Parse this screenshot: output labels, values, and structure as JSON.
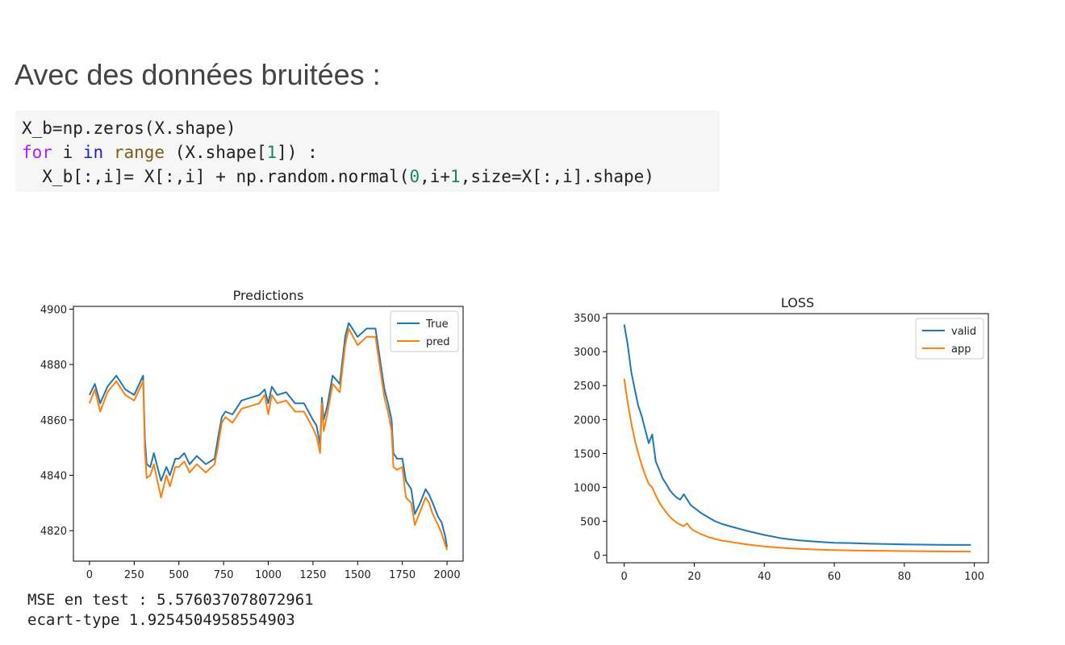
{
  "heading": "Avec des données bruitées :",
  "code": {
    "line1": "X_b=np.zeros(X.shape)",
    "line2": {
      "kw_for": "for",
      "var_i": " i ",
      "kw_in": "in",
      "sp": " ",
      "fn_range": "range",
      "rest": " (X.shape[",
      "num_1": "1",
      "end": "]) :"
    },
    "line3": {
      "a": "  X_b[:,i]= X[:,i] + np.random.normal(",
      "num_0": "0",
      "b": ",i+",
      "num_1": "1",
      "c": ",size=X[:,i].shape)"
    }
  },
  "outputs": {
    "mse": "MSE en test : 5.576037078072961",
    "ecart": "ecart-type 1.9254504958554903"
  },
  "colors": {
    "blue": "#1f77b4",
    "orange": "#ff7f0e"
  },
  "chart_data": [
    {
      "type": "line",
      "title": "Predictions",
      "xlabel": "",
      "ylabel": "",
      "xlim": [
        -90,
        2090
      ],
      "ylim": [
        4809,
        4901
      ],
      "xticks": [
        0,
        250,
        500,
        750,
        1000,
        1250,
        1500,
        1750,
        2000
      ],
      "yticks": [
        4820,
        4840,
        4860,
        4880,
        4900
      ],
      "legend": "upper right",
      "series": [
        {
          "name": "True",
          "x": [
            0,
            30,
            60,
            100,
            150,
            200,
            250,
            300,
            310,
            320,
            340,
            360,
            380,
            400,
            430,
            450,
            480,
            500,
            530,
            560,
            600,
            650,
            700,
            720,
            740,
            760,
            800,
            850,
            900,
            950,
            980,
            1000,
            1020,
            1050,
            1100,
            1150,
            1200,
            1250,
            1270,
            1290,
            1300,
            1310,
            1330,
            1360,
            1400,
            1430,
            1450,
            1500,
            1550,
            1600,
            1650,
            1670,
            1690,
            1700,
            1720,
            1750,
            1770,
            1800,
            1820,
            1850,
            1880,
            1900,
            1920,
            1950,
            1970,
            1990,
            2000
          ],
          "y": [
            4869,
            4873,
            4866,
            4872,
            4876,
            4871,
            4869,
            4876,
            4853,
            4844,
            4843,
            4848,
            4843,
            4838,
            4843,
            4840,
            4846,
            4846,
            4848,
            4844,
            4847,
            4844,
            4846,
            4854,
            4861,
            4863,
            4862,
            4867,
            4868,
            4869,
            4871,
            4866,
            4872,
            4869,
            4870,
            4866,
            4866,
            4860,
            4858,
            4851,
            4868,
            4860,
            4865,
            4876,
            4873,
            4890,
            4895,
            4890,
            4893,
            4893,
            4871,
            4866,
            4860,
            4848,
            4846,
            4846,
            4838,
            4835,
            4826,
            4830,
            4835,
            4833,
            4830,
            4825,
            4823,
            4818,
            4814
          ]
        },
        {
          "name": "pred",
          "x": [
            0,
            30,
            60,
            100,
            150,
            200,
            250,
            300,
            310,
            320,
            340,
            360,
            380,
            400,
            430,
            450,
            480,
            500,
            530,
            560,
            600,
            650,
            700,
            720,
            740,
            760,
            800,
            850,
            900,
            950,
            980,
            1000,
            1020,
            1050,
            1100,
            1150,
            1200,
            1250,
            1270,
            1290,
            1300,
            1310,
            1330,
            1360,
            1400,
            1430,
            1450,
            1500,
            1550,
            1600,
            1650,
            1670,
            1690,
            1700,
            1720,
            1750,
            1770,
            1800,
            1820,
            1850,
            1880,
            1900,
            1920,
            1950,
            1970,
            1990,
            2000
          ],
          "y": [
            4866,
            4871,
            4863,
            4870,
            4874,
            4869,
            4867,
            4874,
            4849,
            4839,
            4840,
            4844,
            4838,
            4832,
            4840,
            4836,
            4843,
            4843,
            4845,
            4841,
            4844,
            4841,
            4844,
            4851,
            4859,
            4861,
            4859,
            4864,
            4865,
            4866,
            4869,
            4862,
            4869,
            4866,
            4867,
            4863,
            4863,
            4857,
            4854,
            4848,
            4866,
            4856,
            4862,
            4873,
            4870,
            4887,
            4893,
            4887,
            4890,
            4890,
            4868,
            4863,
            4856,
            4843,
            4842,
            4843,
            4832,
            4830,
            4822,
            4827,
            4832,
            4830,
            4826,
            4822,
            4819,
            4815,
            4813
          ]
        }
      ]
    },
    {
      "type": "line",
      "title": "LOSS",
      "xlabel": "",
      "ylabel": "",
      "xlim": [
        -5,
        104
      ],
      "ylim": [
        -110,
        3560
      ],
      "xticks": [
        0,
        20,
        40,
        60,
        80,
        100
      ],
      "yticks": [
        0,
        500,
        1000,
        1500,
        2000,
        2500,
        3000,
        3500
      ],
      "legend": "upper right",
      "series": [
        {
          "name": "valid",
          "x": [
            0,
            1,
            2,
            3,
            4,
            5,
            6,
            7,
            8,
            9,
            10,
            11,
            12,
            13,
            14,
            15,
            16,
            17,
            18,
            19,
            20,
            22,
            24,
            26,
            28,
            30,
            35,
            40,
            45,
            50,
            55,
            60,
            65,
            70,
            75,
            80,
            85,
            90,
            95,
            99
          ],
          "y": [
            3400,
            3100,
            2700,
            2450,
            2200,
            2050,
            1850,
            1650,
            1780,
            1380,
            1260,
            1130,
            1050,
            960,
            900,
            850,
            820,
            900,
            820,
            740,
            700,
            620,
            560,
            500,
            460,
            430,
            360,
            300,
            250,
            220,
            200,
            185,
            180,
            170,
            165,
            160,
            157,
            155,
            153,
            152
          ]
        },
        {
          "name": "app",
          "x": [
            0,
            1,
            2,
            3,
            4,
            5,
            6,
            7,
            8,
            9,
            10,
            11,
            12,
            13,
            14,
            15,
            16,
            17,
            18,
            19,
            20,
            22,
            24,
            26,
            28,
            30,
            35,
            40,
            45,
            50,
            55,
            60,
            65,
            70,
            75,
            80,
            85,
            90,
            95,
            99
          ],
          "y": [
            2600,
            2250,
            1950,
            1700,
            1500,
            1330,
            1180,
            1050,
            1000,
            880,
            780,
            700,
            630,
            570,
            520,
            480,
            450,
            430,
            470,
            400,
            360,
            310,
            270,
            240,
            215,
            200,
            160,
            130,
            110,
            95,
            85,
            78,
            72,
            68,
            65,
            62,
            60,
            58,
            56,
            55
          ]
        }
      ]
    }
  ]
}
